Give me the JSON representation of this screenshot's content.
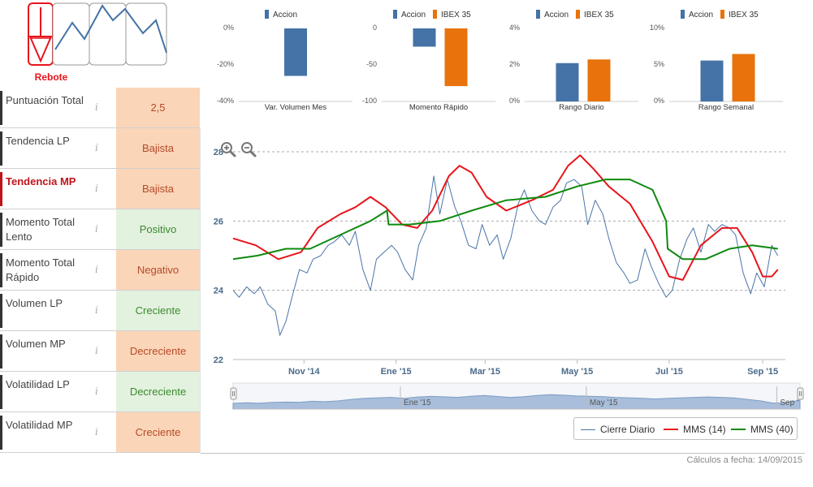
{
  "pattern": {
    "label": "Rebote"
  },
  "metrics": [
    {
      "label": "Puntuación Total",
      "value": "2,5",
      "tone": "neg",
      "active": false
    },
    {
      "label": "Tendencia LP",
      "value": "Bajista",
      "tone": "neg",
      "active": false
    },
    {
      "label": "Tendencia MP",
      "value": "Bajista",
      "tone": "neg",
      "active": true
    },
    {
      "label": "Momento Total Lento",
      "value": "Positivo",
      "tone": "pos",
      "active": false
    },
    {
      "label": "Momento Total Rápido",
      "value": "Negativo",
      "tone": "neg",
      "active": false
    },
    {
      "label": "Volumen LP",
      "value": "Creciente",
      "tone": "pos",
      "active": false
    },
    {
      "label": "Volumen MP",
      "value": "Decreciente",
      "tone": "neg",
      "active": false
    },
    {
      "label": "Volatilidad LP",
      "value": "Decreciente",
      "tone": "pos",
      "active": false
    },
    {
      "label": "Volatilidad MP",
      "value": "Creciente",
      "tone": "neg",
      "active": false
    }
  ],
  "info_glyph": "i",
  "colors": {
    "accion": "#4572a7",
    "ibex": "#e8730c",
    "close": "#4a74a8",
    "mms14": "#e8141b",
    "mms40": "#0e8a0e",
    "navigator": "#a8bedb"
  },
  "mini_charts": [
    {
      "xlabel": "Var. Volumen Mes",
      "legend": [
        "Accion"
      ],
      "yticks": [
        "0%",
        "-20%",
        "-40%"
      ],
      "ylim": [
        -40,
        0
      ],
      "series": [
        {
          "name": "Accion",
          "value": -26
        }
      ]
    },
    {
      "xlabel": "Momento Rápido",
      "legend": [
        "Accion",
        "IBEX 35"
      ],
      "yticks": [
        "0",
        "-50",
        "-100"
      ],
      "ylim": [
        -100,
        0
      ],
      "series": [
        {
          "name": "Accion",
          "value": -25
        },
        {
          "name": "IBEX 35",
          "value": -79
        }
      ]
    },
    {
      "xlabel": "Rango Diario",
      "legend": [
        "Accion",
        "IBEX 35"
      ],
      "yticks": [
        "4%",
        "2%",
        "0%"
      ],
      "ylim": [
        0,
        4
      ],
      "series": [
        {
          "name": "Accion",
          "value": 2.1
        },
        {
          "name": "IBEX 35",
          "value": 2.3
        }
      ]
    },
    {
      "xlabel": "Rango Semanal",
      "legend": [
        "Accion",
        "IBEX 35"
      ],
      "yticks": [
        "10%",
        "5%",
        "0%"
      ],
      "ylim": [
        0,
        10
      ],
      "series": [
        {
          "name": "Accion",
          "value": 5.6
        },
        {
          "name": "IBEX 35",
          "value": 6.5
        }
      ]
    }
  ],
  "chart_data": {
    "type": "line",
    "ylim": [
      22,
      28
    ],
    "yticks": [
      22,
      24,
      26,
      28
    ],
    "xlim": [
      "2014-09-15",
      "2015-09-16"
    ],
    "xticks": [
      {
        "date": "2014-11-01",
        "label": "Nov '14"
      },
      {
        "date": "2015-01-01",
        "label": "Ene '15"
      },
      {
        "date": "2015-03-01",
        "label": "Mar '15"
      },
      {
        "date": "2015-05-01",
        "label": "May '15"
      },
      {
        "date": "2015-07-01",
        "label": "Jul '15"
      },
      {
        "date": "2015-09-01",
        "label": "Sep '15"
      }
    ],
    "navigator_labels": [
      {
        "date": "2015-01-01",
        "label": "Ene '15"
      },
      {
        "date": "2015-05-01",
        "label": "May '15"
      },
      {
        "date": "2015-09-01",
        "label": "Sep '"
      }
    ],
    "grid": true,
    "legend_position": "bottom-right",
    "series": [
      {
        "name": "Cierre Diario",
        "points": [
          [
            "2014-09-15",
            24.0
          ],
          [
            "2014-09-19",
            23.8
          ],
          [
            "2014-09-24",
            24.1
          ],
          [
            "2014-09-29",
            23.9
          ],
          [
            "2014-10-03",
            24.1
          ],
          [
            "2014-10-08",
            23.6
          ],
          [
            "2014-10-13",
            23.4
          ],
          [
            "2014-10-16",
            22.7
          ],
          [
            "2014-10-20",
            23.1
          ],
          [
            "2014-10-24",
            23.8
          ],
          [
            "2014-10-29",
            24.6
          ],
          [
            "2014-11-03",
            24.5
          ],
          [
            "2014-11-07",
            24.9
          ],
          [
            "2014-11-12",
            25.0
          ],
          [
            "2014-11-17",
            25.3
          ],
          [
            "2014-11-21",
            25.4
          ],
          [
            "2014-11-26",
            25.6
          ],
          [
            "2014-12-01",
            25.3
          ],
          [
            "2014-12-05",
            25.7
          ],
          [
            "2014-12-10",
            24.6
          ],
          [
            "2014-12-15",
            24.0
          ],
          [
            "2014-12-19",
            24.9
          ],
          [
            "2014-12-24",
            25.1
          ],
          [
            "2014-12-29",
            25.3
          ],
          [
            "2015-01-02",
            25.1
          ],
          [
            "2015-01-07",
            24.6
          ],
          [
            "2015-01-12",
            24.3
          ],
          [
            "2015-01-16",
            25.3
          ],
          [
            "2015-01-21",
            25.8
          ],
          [
            "2015-01-26",
            27.3
          ],
          [
            "2015-01-30",
            26.2
          ],
          [
            "2015-02-04",
            27.2
          ],
          [
            "2015-02-09",
            26.4
          ],
          [
            "2015-02-13",
            26.0
          ],
          [
            "2015-02-18",
            25.3
          ],
          [
            "2015-02-23",
            25.2
          ],
          [
            "2015-02-27",
            25.9
          ],
          [
            "2015-03-04",
            25.3
          ],
          [
            "2015-03-09",
            25.6
          ],
          [
            "2015-03-13",
            24.9
          ],
          [
            "2015-03-18",
            25.5
          ],
          [
            "2015-03-23",
            26.5
          ],
          [
            "2015-03-27",
            26.9
          ],
          [
            "2015-04-01",
            26.3
          ],
          [
            "2015-04-06",
            26.0
          ],
          [
            "2015-04-10",
            25.9
          ],
          [
            "2015-04-15",
            26.4
          ],
          [
            "2015-04-20",
            26.6
          ],
          [
            "2015-04-24",
            27.1
          ],
          [
            "2015-04-29",
            27.2
          ],
          [
            "2015-05-04",
            27.0
          ],
          [
            "2015-05-08",
            25.9
          ],
          [
            "2015-05-13",
            26.6
          ],
          [
            "2015-05-18",
            26.2
          ],
          [
            "2015-05-22",
            25.5
          ],
          [
            "2015-05-27",
            24.8
          ],
          [
            "2015-06-01",
            24.5
          ],
          [
            "2015-06-05",
            24.2
          ],
          [
            "2015-06-10",
            24.3
          ],
          [
            "2015-06-15",
            25.2
          ],
          [
            "2015-06-19",
            24.7
          ],
          [
            "2015-06-24",
            24.2
          ],
          [
            "2015-06-29",
            23.8
          ],
          [
            "2015-07-03",
            24.0
          ],
          [
            "2015-07-08",
            24.9
          ],
          [
            "2015-07-13",
            25.5
          ],
          [
            "2015-07-17",
            25.8
          ],
          [
            "2015-07-22",
            25.1
          ],
          [
            "2015-07-27",
            25.9
          ],
          [
            "2015-07-31",
            25.7
          ],
          [
            "2015-08-05",
            25.9
          ],
          [
            "2015-08-10",
            25.8
          ],
          [
            "2015-08-14",
            25.6
          ],
          [
            "2015-08-19",
            24.5
          ],
          [
            "2015-08-24",
            23.9
          ],
          [
            "2015-08-28",
            24.5
          ],
          [
            "2015-09-02",
            24.1
          ],
          [
            "2015-09-07",
            25.3
          ],
          [
            "2015-09-11",
            25.0
          ]
        ]
      },
      {
        "name": "MMS (14)",
        "points": [
          [
            "2014-09-15",
            25.5
          ],
          [
            "2014-09-30",
            25.3
          ],
          [
            "2014-10-15",
            24.9
          ],
          [
            "2014-10-30",
            25.1
          ],
          [
            "2014-11-10",
            25.8
          ],
          [
            "2014-11-25",
            26.2
          ],
          [
            "2014-12-05",
            26.4
          ],
          [
            "2014-12-15",
            26.7
          ],
          [
            "2014-12-25",
            26.4
          ],
          [
            "2015-01-05",
            25.9
          ],
          [
            "2015-01-15",
            25.8
          ],
          [
            "2015-01-25",
            26.3
          ],
          [
            "2015-02-05",
            27.3
          ],
          [
            "2015-02-12",
            27.6
          ],
          [
            "2015-02-20",
            27.4
          ],
          [
            "2015-03-02",
            26.7
          ],
          [
            "2015-03-15",
            26.3
          ],
          [
            "2015-04-01",
            26.6
          ],
          [
            "2015-04-15",
            26.9
          ],
          [
            "2015-04-25",
            27.6
          ],
          [
            "2015-05-03",
            27.9
          ],
          [
            "2015-05-12",
            27.5
          ],
          [
            "2015-05-22",
            27.0
          ],
          [
            "2015-06-05",
            26.5
          ],
          [
            "2015-06-20",
            25.4
          ],
          [
            "2015-07-01",
            24.4
          ],
          [
            "2015-07-10",
            24.3
          ],
          [
            "2015-07-22",
            25.3
          ],
          [
            "2015-08-05",
            25.8
          ],
          [
            "2015-08-15",
            25.8
          ],
          [
            "2015-08-25",
            25.1
          ],
          [
            "2015-09-01",
            24.4
          ],
          [
            "2015-09-07",
            24.4
          ],
          [
            "2015-09-11",
            24.6
          ]
        ]
      },
      {
        "name": "MMS (40)",
        "points": [
          [
            "2014-09-15",
            24.9
          ],
          [
            "2014-10-01",
            25.0
          ],
          [
            "2014-10-20",
            25.2
          ],
          [
            "2014-11-05",
            25.2
          ],
          [
            "2014-11-25",
            25.6
          ],
          [
            "2014-12-15",
            26.0
          ],
          [
            "2014-12-26",
            26.3
          ],
          [
            "2014-12-27",
            25.9
          ],
          [
            "2015-01-10",
            25.9
          ],
          [
            "2015-01-30",
            26.0
          ],
          [
            "2015-02-20",
            26.3
          ],
          [
            "2015-03-15",
            26.6
          ],
          [
            "2015-04-10",
            26.7
          ],
          [
            "2015-05-01",
            27.0
          ],
          [
            "2015-05-20",
            27.2
          ],
          [
            "2015-06-05",
            27.2
          ],
          [
            "2015-06-20",
            26.9
          ],
          [
            "2015-06-29",
            26.0
          ],
          [
            "2015-06-30",
            25.2
          ],
          [
            "2015-07-10",
            24.9
          ],
          [
            "2015-07-25",
            24.9
          ],
          [
            "2015-08-10",
            25.2
          ],
          [
            "2015-08-25",
            25.3
          ],
          [
            "2015-09-11",
            25.2
          ]
        ]
      }
    ],
    "navigator_values": [
      0.3,
      0.32,
      0.3,
      0.34,
      0.36,
      0.35,
      0.4,
      0.38,
      0.42,
      0.5,
      0.55,
      0.58,
      0.6,
      0.55,
      0.62,
      0.65,
      0.63,
      0.6,
      0.66,
      0.7,
      0.65,
      0.6,
      0.63,
      0.7,
      0.74,
      0.72,
      0.68,
      0.66,
      0.64,
      0.6,
      0.58,
      0.56,
      0.52,
      0.55,
      0.58,
      0.6,
      0.62,
      0.6,
      0.57,
      0.5,
      0.42,
      0.3,
      0.35,
      0.45
    ]
  },
  "legend": [
    {
      "name": "Cierre Diario",
      "color_key": "close"
    },
    {
      "name": "MMS (14)",
      "color_key": "mms14"
    },
    {
      "name": "MMS (40)",
      "color_key": "mms40"
    }
  ],
  "footer": {
    "calc_date": "Cálculos a fecha: 14/09/2015"
  }
}
